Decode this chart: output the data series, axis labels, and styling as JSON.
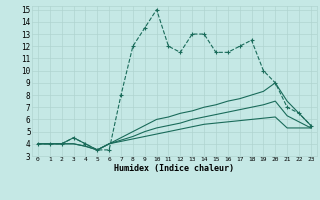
{
  "title": "",
  "xlabel": "Humidex (Indice chaleur)",
  "bg_color": "#c5e8e5",
  "grid_color": "#b0d4d0",
  "line_color": "#1a6b5a",
  "xlim": [
    -0.5,
    23.5
  ],
  "ylim": [
    3,
    15.3
  ],
  "xticks": [
    0,
    1,
    2,
    3,
    4,
    5,
    6,
    7,
    8,
    9,
    10,
    11,
    12,
    13,
    14,
    15,
    16,
    17,
    18,
    19,
    20,
    21,
    22,
    23
  ],
  "yticks": [
    3,
    4,
    5,
    6,
    7,
    8,
    9,
    10,
    11,
    12,
    13,
    14,
    15
  ],
  "s1_x": [
    0,
    1,
    2,
    3,
    4,
    5,
    6,
    7,
    8,
    9,
    10,
    11,
    12,
    13,
    14,
    15,
    16,
    17,
    18,
    19,
    20,
    21,
    22,
    23
  ],
  "s1_y": [
    4,
    4,
    4,
    4.5,
    4,
    3.5,
    3.5,
    8,
    12,
    13.5,
    15,
    12,
    11.5,
    13,
    13,
    11.5,
    11.5,
    12,
    12.5,
    10,
    9,
    7,
    6.5,
    5.5
  ],
  "s2_x": [
    0,
    1,
    2,
    3,
    4,
    5,
    6,
    7,
    8,
    9,
    10,
    11,
    12,
    13,
    14,
    15,
    16,
    17,
    18,
    19,
    20,
    21,
    22,
    23
  ],
  "s2_y": [
    4,
    4,
    4,
    4.5,
    4,
    3.5,
    4,
    4.5,
    5,
    5.5,
    6,
    6.2,
    6.5,
    6.7,
    7,
    7.2,
    7.5,
    7.7,
    8,
    8.3,
    9,
    7.5,
    6.5,
    5.5
  ],
  "s3_x": [
    0,
    1,
    2,
    3,
    4,
    5,
    6,
    7,
    8,
    9,
    10,
    11,
    12,
    13,
    14,
    15,
    16,
    17,
    18,
    19,
    20,
    21,
    22,
    23
  ],
  "s3_y": [
    4,
    4,
    4,
    4,
    3.8,
    3.5,
    4,
    4.3,
    4.6,
    5,
    5.3,
    5.5,
    5.7,
    6,
    6.2,
    6.4,
    6.6,
    6.8,
    7,
    7.2,
    7.5,
    6.3,
    5.8,
    5.3
  ],
  "s4_x": [
    0,
    1,
    2,
    3,
    4,
    5,
    6,
    7,
    8,
    9,
    10,
    11,
    12,
    13,
    14,
    15,
    16,
    17,
    18,
    19,
    20,
    21,
    22,
    23
  ],
  "s4_y": [
    4,
    4,
    4,
    4,
    3.8,
    3.5,
    4,
    4.2,
    4.4,
    4.6,
    4.8,
    5,
    5.2,
    5.4,
    5.6,
    5.7,
    5.8,
    5.9,
    6,
    6.1,
    6.2,
    5.3,
    5.3,
    5.3
  ]
}
